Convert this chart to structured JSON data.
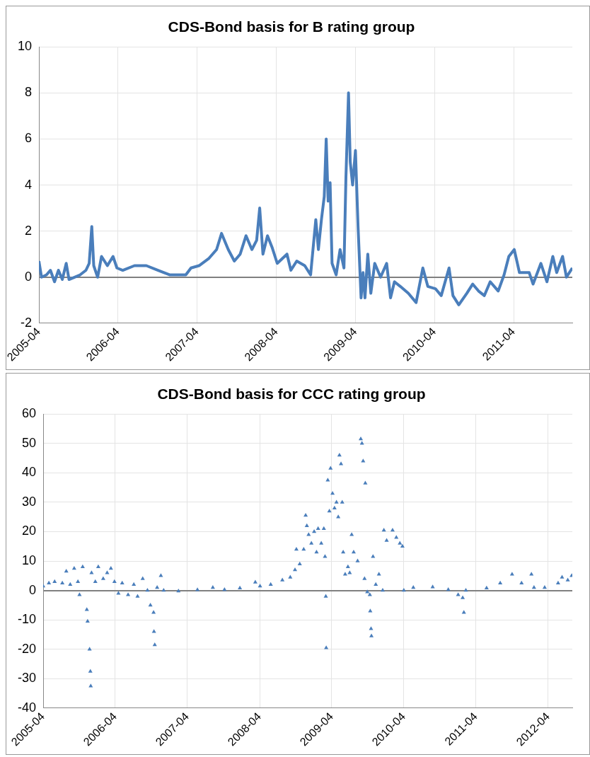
{
  "chart_data": [
    {
      "type": "line",
      "title": "CDS-Bond basis for B rating group",
      "xlim": [
        "2005-04-01",
        "2011-12-28"
      ],
      "xticks": [
        "2005-04",
        "2006-04",
        "2007-04",
        "2008-04",
        "2009-04",
        "2010-04",
        "2011-04"
      ],
      "ylim": [
        -2,
        10
      ],
      "yticks": [
        -2,
        0,
        2,
        4,
        6,
        8,
        10
      ],
      "grid": true,
      "legend": false,
      "marker": "none",
      "line_style": "solid",
      "series": [
        {
          "color": "#4a7ebb",
          "x": [
            "2005-04-01",
            "2005-04-13",
            "2005-05-06",
            "2005-05-24",
            "2005-06-12",
            "2005-06-30",
            "2005-07-18",
            "2005-08-05",
            "2005-08-18",
            "2005-10-08",
            "2005-11-04",
            "2005-11-19",
            "2005-12-01",
            "2005-12-10",
            "2005-12-28",
            "2006-01-15",
            "2006-02-11",
            "2006-03-09",
            "2006-03-27",
            "2006-04-23",
            "2006-06-16",
            "2006-08-10",
            "2006-10-03",
            "2006-11-27",
            "2007-02-08",
            "2007-03-04",
            "2007-04-10",
            "2007-05-24",
            "2007-06-30",
            "2007-07-23",
            "2007-08-23",
            "2007-09-20",
            "2007-10-17",
            "2007-11-13",
            "2007-12-10",
            "2008-01-01",
            "2008-01-15",
            "2008-01-30",
            "2008-02-20",
            "2008-03-12",
            "2008-04-05",
            "2008-05-20",
            "2008-06-07",
            "2008-07-04",
            "2008-08-10",
            "2008-09-06",
            "2008-09-30",
            "2008-10-12",
            "2008-10-26",
            "2008-11-08",
            "2008-11-17",
            "2008-11-26",
            "2008-12-05",
            "2008-12-14",
            "2009-01-02",
            "2009-01-20",
            "2009-02-07",
            "2009-02-16",
            "2009-02-28",
            "2009-03-08",
            "2009-03-19",
            "2009-04-01",
            "2009-04-13",
            "2009-04-27",
            "2009-05-06",
            "2009-05-15",
            "2009-05-28",
            "2009-06-11",
            "2009-06-29",
            "2009-07-26",
            "2009-08-23",
            "2009-09-10",
            "2009-09-28",
            "2009-10-25",
            "2009-12-01",
            "2010-01-06",
            "2010-02-06",
            "2010-03-01",
            "2010-04-05",
            "2010-05-02",
            "2010-06-07",
            "2010-06-25",
            "2010-07-22",
            "2010-08-28",
            "2010-09-24",
            "2010-10-21",
            "2010-11-17",
            "2010-12-14",
            "2011-01-20",
            "2011-02-16",
            "2011-03-10",
            "2011-04-04",
            "2011-04-28",
            "2011-06-12",
            "2011-06-30",
            "2011-08-05",
            "2011-09-02",
            "2011-09-29",
            "2011-10-17",
            "2011-11-13",
            "2011-12-01",
            "2011-12-28"
          ],
          "values": [
            0.7,
            0.0,
            0.1,
            0.3,
            -0.2,
            0.3,
            -0.1,
            0.6,
            -0.1,
            0.1,
            0.3,
            0.6,
            2.2,
            0.5,
            0.0,
            0.9,
            0.5,
            0.9,
            0.4,
            0.3,
            0.5,
            0.5,
            0.3,
            0.1,
            0.1,
            0.4,
            0.5,
            0.8,
            1.2,
            1.9,
            1.2,
            0.7,
            1.0,
            1.8,
            1.2,
            1.6,
            3.0,
            1.0,
            1.8,
            1.3,
            0.6,
            1.0,
            0.3,
            0.7,
            0.5,
            0.1,
            2.5,
            1.2,
            2.5,
            3.5,
            6.0,
            3.3,
            4.1,
            0.6,
            0.1,
            1.2,
            0.4,
            4.3,
            8.0,
            5.0,
            4.0,
            5.5,
            2.2,
            -0.9,
            0.2,
            -0.9,
            1.0,
            -0.7,
            0.6,
            0.0,
            0.6,
            -0.9,
            -0.2,
            -0.4,
            -0.7,
            -1.1,
            0.4,
            -0.4,
            -0.5,
            -0.8,
            0.4,
            -0.8,
            -1.2,
            -0.7,
            -0.3,
            -0.6,
            -0.8,
            -0.2,
            -0.6,
            0.1,
            0.9,
            1.2,
            0.2,
            0.2,
            -0.3,
            0.6,
            -0.2,
            0.9,
            0.2,
            0.9,
            0.0,
            0.4
          ]
        }
      ]
    },
    {
      "type": "scatter",
      "title": "CDS-Bond basis for CCC rating group",
      "xlim": [
        "2005-04-01",
        "2012-08-01"
      ],
      "xticks": [
        "2005-04",
        "2006-04",
        "2007-04",
        "2008-04",
        "2009-04",
        "2010-04",
        "2011-04",
        "2012-04"
      ],
      "ylim": [
        -40,
        60
      ],
      "yticks": [
        -40,
        -30,
        -20,
        -10,
        0,
        10,
        20,
        30,
        40,
        50,
        60
      ],
      "grid": true,
      "legend": false,
      "marker": "triangle",
      "series": [
        {
          "color": "#4a7ebb",
          "x": [
            "2005-04-01",
            "2005-04-30",
            "2005-05-29",
            "2005-07-07",
            "2005-07-27",
            "2005-08-16",
            "2005-09-05",
            "2005-09-24",
            "2005-10-02",
            "2005-10-18",
            "2005-11-08",
            "2005-11-12",
            "2005-11-22",
            "2005-11-26",
            "2005-11-28",
            "2005-12-02",
            "2005-12-21",
            "2006-01-05",
            "2006-01-30",
            "2006-02-19",
            "2006-03-10",
            "2006-03-28",
            "2006-04-17",
            "2006-05-06",
            "2006-06-05",
            "2006-07-04",
            "2006-07-23",
            "2006-08-18",
            "2006-09-11",
            "2006-09-26",
            "2006-10-12",
            "2006-10-14",
            "2006-10-18",
            "2006-10-30",
            "2006-11-18",
            "2006-12-02",
            "2007-02-15",
            "2007-05-22",
            "2007-08-08",
            "2007-10-06",
            "2007-12-23",
            "2008-03-10",
            "2008-04-03",
            "2008-05-27",
            "2008-07-25",
            "2008-09-03",
            "2008-09-27",
            "2008-10-04",
            "2008-10-21",
            "2008-11-10",
            "2008-11-20",
            "2008-11-26",
            "2008-12-05",
            "2008-12-19",
            "2009-01-02",
            "2009-01-14",
            "2009-01-22",
            "2009-02-07",
            "2009-02-20",
            "2009-02-26",
            "2009-03-02",
            "2009-03-04",
            "2009-03-12",
            "2009-03-20",
            "2009-03-26",
            "2009-04-05",
            "2009-04-15",
            "2009-04-25",
            "2009-05-04",
            "2009-05-10",
            "2009-05-18",
            "2009-05-24",
            "2009-05-29",
            "2009-06-08",
            "2009-06-22",
            "2009-07-01",
            "2009-07-11",
            "2009-07-21",
            "2009-08-10",
            "2009-08-26",
            "2009-09-01",
            "2009-09-07",
            "2009-09-14",
            "2009-09-18",
            "2009-09-28",
            "2009-10-11",
            "2009-10-13",
            "2009-10-17",
            "2009-10-19",
            "2009-10-27",
            "2009-11-10",
            "2009-11-26",
            "2009-12-15",
            "2009-12-21",
            "2010-01-04",
            "2010-02-03",
            "2010-02-22",
            "2010-03-12",
            "2010-03-25",
            "2010-04-01",
            "2010-05-19",
            "2010-08-25",
            "2010-11-12",
            "2011-01-01",
            "2011-01-24",
            "2011-01-30",
            "2011-02-09",
            "2011-05-25",
            "2011-08-02",
            "2011-10-01",
            "2011-11-18",
            "2012-01-07",
            "2012-01-20",
            "2012-03-14",
            "2012-05-21",
            "2012-06-10",
            "2012-07-09",
            "2012-07-29"
          ],
          "values": [
            1.5,
            2.5,
            3,
            2.5,
            6.5,
            2,
            7.5,
            3,
            -1.5,
            8,
            -6.5,
            -10.5,
            -20,
            -27.5,
            -32.5,
            6,
            3,
            8,
            4,
            6,
            7.5,
            3,
            -1,
            2.5,
            -1.5,
            2,
            -2,
            4,
            0,
            -5,
            -7.5,
            -14,
            -18.5,
            1,
            5,
            0,
            -0.2,
            0.2,
            1,
            0.3,
            0.8,
            2.8,
            1.5,
            2,
            3.5,
            4.5,
            7,
            14,
            9,
            14,
            25.5,
            22,
            19,
            16,
            20,
            13,
            21,
            16,
            21,
            11.5,
            -2,
            -19.5,
            37.5,
            27,
            41.5,
            33,
            28,
            30,
            25,
            46,
            43,
            30,
            13,
            5.5,
            8,
            6,
            19,
            13,
            10,
            51.5,
            50,
            44,
            4,
            36.5,
            -0.5,
            -1.5,
            -7,
            -13,
            -15.5,
            11.5,
            2,
            5.5,
            0,
            20.5,
            17,
            20.5,
            18,
            16,
            15,
            0,
            1,
            1.2,
            0.3,
            -1.5,
            -2.5,
            -7.5,
            0,
            0.8,
            2.5,
            5.5,
            2.5,
            5.5,
            1,
            1,
            2.5,
            4.5,
            3.5,
            5
          ]
        }
      ]
    }
  ]
}
